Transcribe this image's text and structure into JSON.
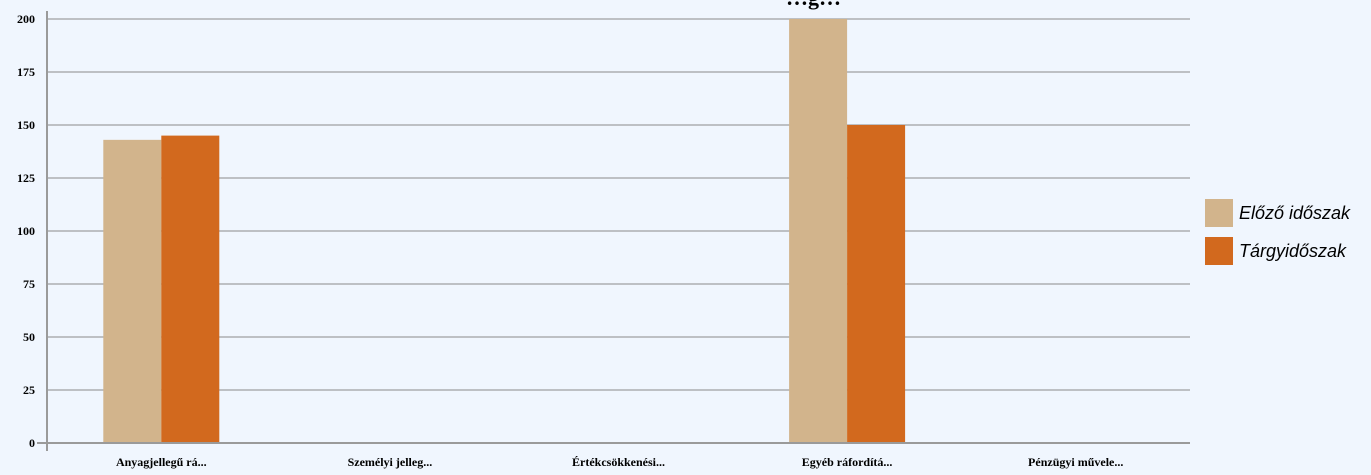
{
  "chart_data": {
    "type": "bar",
    "title": "…g…",
    "categories": [
      "Anyagjellegű rá...",
      "Személyi jelleg...",
      "Értékcsökkenési...",
      "Egyéb ráfordítá...",
      "Pénzügyi művele..."
    ],
    "series": [
      {
        "name": "Előző időszak",
        "color": "#d2b48c",
        "values": [
          143,
          0,
          0,
          200,
          0
        ]
      },
      {
        "name": "Tárgyidőszak",
        "color": "#d2691e",
        "values": [
          145,
          0,
          0,
          150,
          0
        ]
      }
    ],
    "yticks": [
      0,
      25,
      50,
      75,
      100,
      125,
      150,
      175,
      200
    ],
    "ylim": [
      0,
      200
    ],
    "grid": true,
    "legend_position": "right"
  }
}
